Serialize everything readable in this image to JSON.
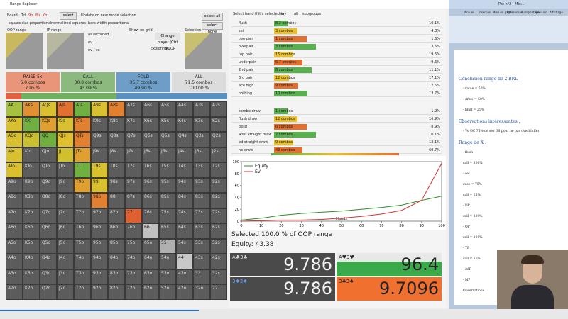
{
  "window_title": "Range Explorer",
  "toolbar": {
    "board_label": "Board",
    "board_cards": [
      "Td",
      "9h",
      "8h",
      "Kh"
    ],
    "select": "select",
    "update": "Update on new mode selection",
    "square_size": "square size proportional",
    "normalized": "normalized squares",
    "bars": "bars width proportional",
    "select_all": "select all",
    "select_none": "select none"
  },
  "ranges": {
    "oop": "OOP range",
    "ip": "IP range",
    "selection": "Selection",
    "show_on_grid": "Show on grid",
    "options": [
      "as recorded",
      "ev",
      "ev / ca"
    ],
    "change_player": "Change player (Ctrl R)",
    "exploring": "Exploring",
    "exploring_value": "OOP"
  },
  "actions": [
    {
      "name": "RAISE 5x",
      "combos": "5.0 combos",
      "pct": "7.05 %"
    },
    {
      "name": "CALL",
      "combos": "30.8 combos",
      "pct": "43.09 %"
    },
    {
      "name": "FOLD",
      "combos": "35.7 combos",
      "pct": "49.90 %"
    },
    {
      "name": "ALL",
      "combos": "71.5 combos",
      "pct": "100.00 %"
    }
  ],
  "matrix": [
    [
      "AA",
      "AKs",
      "AQs",
      "AJs",
      "ATs",
      "A9s",
      "A8s",
      "A7s",
      "A6s",
      "A5s",
      "A4s",
      "A3s",
      "A2s"
    ],
    [
      "AKo",
      "KK",
      "KQs",
      "KJs",
      "KTs",
      "K9s",
      "K8s",
      "K7s",
      "K6s",
      "K5s",
      "K4s",
      "K3s",
      "K2s"
    ],
    [
      "AQo",
      "KQo",
      "QQ",
      "QJs",
      "QTs",
      "Q9s",
      "Q8s",
      "Q7s",
      "Q6s",
      "Q5s",
      "Q4s",
      "Q3s",
      "Q2s"
    ],
    [
      "AJo",
      "KJo",
      "QJo",
      "JJ",
      "JTs",
      "J9s",
      "J8s",
      "J7s",
      "J6s",
      "J5s",
      "J4s",
      "J3s",
      "J2s"
    ],
    [
      "ATo",
      "KTo",
      "QTo",
      "JTo",
      "TT",
      "T9s",
      "T8s",
      "T7s",
      "T6s",
      "T5s",
      "T4s",
      "T3s",
      "T2s"
    ],
    [
      "A9o",
      "K9o",
      "Q9o",
      "J9o",
      "T9o",
      "99",
      "98s",
      "97s",
      "96s",
      "95s",
      "94s",
      "93s",
      "92s"
    ],
    [
      "A8o",
      "K8o",
      "Q8o",
      "J8o",
      "T8o",
      "98o",
      "88",
      "87s",
      "86s",
      "85s",
      "84s",
      "83s",
      "82s"
    ],
    [
      "A7o",
      "K7o",
      "Q7o",
      "J7o",
      "T7o",
      "97o",
      "87o",
      "77",
      "76s",
      "75s",
      "74s",
      "73s",
      "72s"
    ],
    [
      "A6o",
      "K6o",
      "Q6o",
      "J6o",
      "T6o",
      "96o",
      "86o",
      "76o",
      "66",
      "65s",
      "64s",
      "63s",
      "62s"
    ],
    [
      "A5o",
      "K5o",
      "Q5o",
      "J5o",
      "T5o",
      "95o",
      "85o",
      "75o",
      "65o",
      "55",
      "54s",
      "53s",
      "52s"
    ],
    [
      "A4o",
      "K4o",
      "Q4o",
      "J4o",
      "T4o",
      "94o",
      "84o",
      "74o",
      "64o",
      "54o",
      "44",
      "43s",
      "42s"
    ],
    [
      "A3o",
      "K3o",
      "Q3o",
      "J3o",
      "T3o",
      "93o",
      "83o",
      "73o",
      "63o",
      "53o",
      "43o",
      "33",
      "32s"
    ],
    [
      "A2o",
      "K2o",
      "Q2o",
      "J2o",
      "T2o",
      "92o",
      "82o",
      "72o",
      "62o",
      "52o",
      "42o",
      "32o",
      "22"
    ]
  ],
  "hand_lists": {
    "header": "Select hand if it's selected in",
    "any": "any",
    "all": "all",
    "subgroups": "subgroups",
    "made": [
      {
        "name": "flush",
        "combos": "8.2 combos",
        "pct": "10.1%"
      },
      {
        "name": "set",
        "combos": "3 combos",
        "pct": "4.3%"
      },
      {
        "name": "two pair",
        "combos": "1 combos",
        "pct": "1.6%"
      },
      {
        "name": "overpair",
        "combos": "3 combos",
        "pct": "3.6%"
      },
      {
        "name": "top pair",
        "combos": "15 combos",
        "pct": "19.6%"
      },
      {
        "name": "underpair",
        "combos": "6.7 combos",
        "pct": "9.6%"
      },
      {
        "name": "2nd pair",
        "combos": "8 combos",
        "pct": "11.1%"
      },
      {
        "name": "3rd pair",
        "combos": "12 combos",
        "pct": "17.1%"
      },
      {
        "name": "ace high",
        "combos": "9 combos",
        "pct": "12.5%"
      },
      {
        "name": "nothing",
        "combos": "10 combos",
        "pct": "13.7%"
      }
    ],
    "draws": [
      {
        "name": "combo draw",
        "combos": "1 combos",
        "pct": "1.9%"
      },
      {
        "name": "flush draw",
        "combos": "12 combos",
        "pct": "16.9%"
      },
      {
        "name": "oesd",
        "combos": "6 combos",
        "pct": "8.9%"
      },
      {
        "name": "4out straight draw",
        "combos": "7 combos",
        "pct": "10.1%"
      },
      {
        "name": "bd straight draw",
        "combos": "9 combos",
        "pct": "13.1%"
      },
      {
        "name": "no draw",
        "combos": "43 combos",
        "pct": "60.7%"
      }
    ]
  },
  "chart_data": {
    "type": "line",
    "x_label": "Hands",
    "x": [
      0,
      10,
      20,
      30,
      40,
      50,
      60,
      70,
      80,
      90,
      100
    ],
    "series": [
      {
        "name": "Equity",
        "color": "#2e8b2e",
        "values": [
          2,
          5,
          10,
          13,
          15,
          17,
          20,
          23,
          27,
          35,
          42
        ]
      },
      {
        "name": "EV",
        "color": "#d03030",
        "values": [
          0,
          1,
          2,
          2,
          3,
          5,
          8,
          12,
          18,
          35,
          97
        ]
      }
    ],
    "xlim": [
      0,
      100
    ],
    "xticks": [
      0,
      10,
      20,
      30,
      40,
      50,
      60,
      70,
      80,
      90,
      100
    ],
    "ylim": [
      0,
      100
    ],
    "yticks": [
      0,
      20,
      40,
      60,
      80,
      100
    ],
    "grid": false
  },
  "summary": {
    "selected": "Selected 100.0 % of OOP range",
    "equity": "Equity: 43.38"
  },
  "stats": [
    {
      "cards": "A♣3♣",
      "value": "9.786"
    },
    {
      "cards": "A♥3♥",
      "value": "96.4"
    },
    {
      "cards": "3♦3♠",
      "value": "9.786"
    },
    {
      "cards": "3♣3♠",
      "value": "9.7096"
    }
  ],
  "document": {
    "title": "Pot n°2 - Mic...",
    "tabs": [
      "Accueil",
      "Insertion",
      "Mise en page",
      "Références",
      "Publipostage",
      "Révision",
      "Affichage"
    ],
    "lines": [
      "Conclusion range de 2 BRL",
      "- value = 50%",
      "- draw = 50%",
      "- bluff = 25%",
      "Observations intéressantes :",
      "- Vu GC 75% de ses GS pour ne pas overbluffer",
      "Range de X :",
      "- flush",
      "call = 100%",
      "- set",
      "cuse = 75%",
      "call = 25%",
      "- DP",
      "call = 100%",
      "- OP",
      "call = 100%",
      "- TP",
      "call = 75%",
      "- 2dP",
      "- MP",
      "Observations"
    ]
  }
}
